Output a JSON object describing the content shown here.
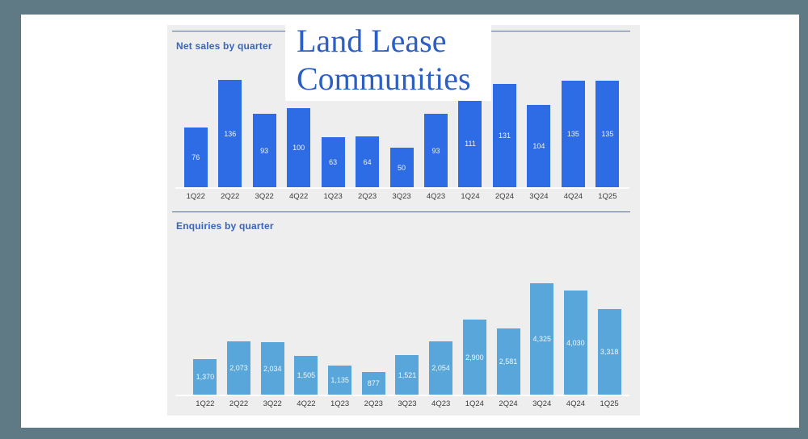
{
  "logo": {
    "line1": "Land Lease",
    "line2": "Communities"
  },
  "colors": {
    "frame_background": "#5f7a85",
    "card_background": "#ffffff",
    "panel_background": "#eeeeee",
    "divider": "#64809f",
    "title_text": "#3565c0",
    "logo_text": "#2c5fc4",
    "net_sales_bar": "#2e6ce5",
    "enquiries_bar": "#58a6da",
    "bar_value_text": "#ffffff",
    "tick_text": "#3c3c3c"
  },
  "chart_data": [
    {
      "type": "bar",
      "title": "Net sales by quarter",
      "categories": [
        "1Q22",
        "2Q22",
        "3Q22",
        "4Q22",
        "1Q23",
        "2Q23",
        "3Q23",
        "4Q23",
        "1Q24",
        "2Q24",
        "3Q24",
        "4Q24",
        "1Q25"
      ],
      "values": [
        76,
        136,
        93,
        100,
        63,
        64,
        50,
        93,
        111,
        131,
        104,
        135,
        135
      ],
      "bar_color": "#2e6ce5",
      "value_labels_position": "inside-center",
      "xlabel": "",
      "ylabel": "",
      "ylim": [
        0,
        136
      ],
      "grid": false,
      "legend": false
    },
    {
      "type": "bar",
      "title": "Enquiries by quarter",
      "categories": [
        "1Q22",
        "2Q22",
        "3Q22",
        "4Q22",
        "1Q23",
        "2Q23",
        "3Q23",
        "4Q23",
        "1Q24",
        "2Q24",
        "3Q24",
        "4Q24",
        "1Q25"
      ],
      "values": [
        1370,
        2073,
        2034,
        1505,
        1135,
        877,
        1521,
        2054,
        2900,
        2581,
        4325,
        4030,
        3318
      ],
      "bar_color": "#58a6da",
      "value_labels_position": "inside-center",
      "value_format": "thousands-comma",
      "xlabel": "",
      "ylabel": "",
      "ylim": [
        0,
        4325
      ],
      "grid": false,
      "legend": false
    }
  ]
}
